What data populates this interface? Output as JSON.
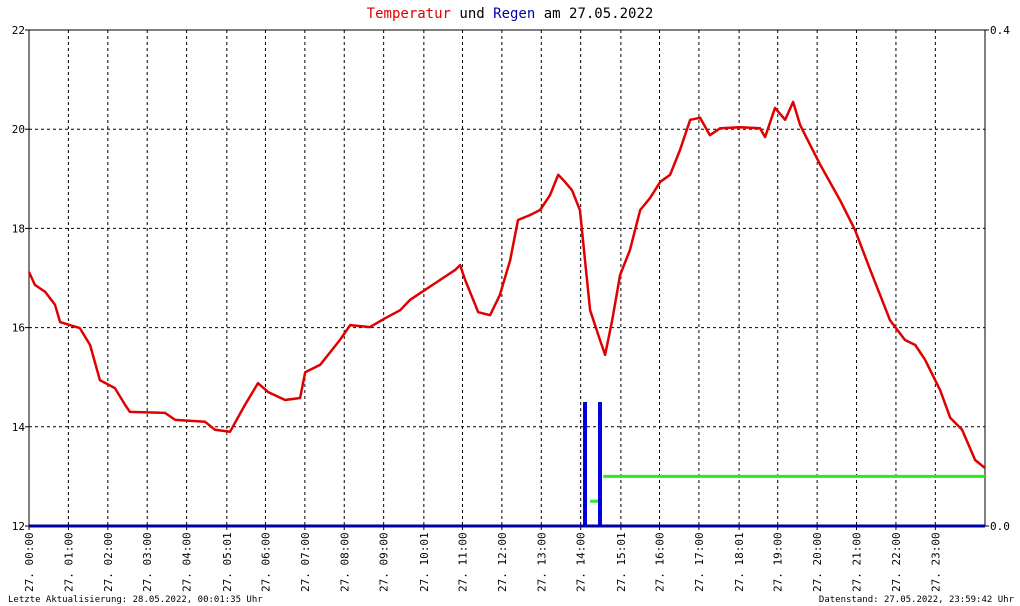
{
  "chart_data": {
    "type": "line",
    "title": {
      "connector": "und",
      "date": "am 27.05.2022"
    },
    "footer_left": "Letzte Aktualisierung: 28.05.2022, 00:01:35 Uhr",
    "footer_right": "Datenstand: 27.05.2022, 23:59:42 Uhr",
    "xlim": [
      0,
      24.26
    ],
    "xticks": [
      {
        "value": 0,
        "label": "27. 00:00"
      },
      {
        "value": 1,
        "label": "27. 01:00"
      },
      {
        "value": 2,
        "label": "27. 02:00"
      },
      {
        "value": 3,
        "label": "27. 03:00"
      },
      {
        "value": 4,
        "label": "27. 04:00"
      },
      {
        "value": 5.02,
        "label": "27. 05:01"
      },
      {
        "value": 6,
        "label": "27. 06:00"
      },
      {
        "value": 7,
        "label": "27. 07:00"
      },
      {
        "value": 8,
        "label": "27. 08:00"
      },
      {
        "value": 9,
        "label": "27. 09:00"
      },
      {
        "value": 10.02,
        "label": "27. 10:01"
      },
      {
        "value": 11,
        "label": "27. 11:00"
      },
      {
        "value": 12,
        "label": "27. 12:00"
      },
      {
        "value": 13,
        "label": "27. 13:00"
      },
      {
        "value": 14,
        "label": "27. 14:00"
      },
      {
        "value": 15.02,
        "label": "27. 15:01"
      },
      {
        "value": 16,
        "label": "27. 16:00"
      },
      {
        "value": 17,
        "label": "27. 17:00"
      },
      {
        "value": 18.02,
        "label": "27. 18:01"
      },
      {
        "value": 19,
        "label": "27. 19:00"
      },
      {
        "value": 20,
        "label": "27. 20:00"
      },
      {
        "value": 21,
        "label": "27. 21:00"
      },
      {
        "value": 22,
        "label": "27. 22:00"
      },
      {
        "value": 23,
        "label": "27. 23:00"
      }
    ],
    "ylim": [
      12,
      22
    ],
    "yticks": [
      12,
      14,
      16,
      18,
      20,
      22
    ],
    "y2lim": [
      0,
      0.4
    ],
    "y2ticks": [
      {
        "value": 0,
        "label": "0.0"
      },
      {
        "value": 0.4,
        "label": "0.4"
      }
    ],
    "grid": true,
    "series": [
      {
        "name": "Temperatur",
        "color": "#e00000",
        "kind": "line",
        "x": [
          0,
          0.15,
          0.41,
          0.66,
          0.79,
          1.29,
          1.55,
          1.8,
          2.18,
          2.44,
          2.56,
          3.45,
          3.71,
          4.47,
          4.72,
          5.1,
          5.48,
          5.81,
          6.07,
          6.5,
          6.88,
          7.01,
          7.39,
          7.89,
          8.15,
          8.65,
          9.04,
          9.42,
          9.67,
          10.05,
          10.43,
          10.81,
          10.94,
          11.07,
          11.4,
          11.7,
          11.95,
          12.21,
          12.41,
          12.72,
          12.97,
          13.22,
          13.43,
          13.6,
          13.78,
          13.98,
          14.24,
          14.49,
          14.62,
          14.8,
          15.0,
          15.25,
          15.51,
          15.76,
          16.02,
          16.27,
          16.52,
          16.78,
          17.03,
          17.28,
          17.54,
          18.05,
          18.55,
          18.68,
          18.93,
          19.19,
          19.39,
          19.57,
          20.08,
          20.58,
          20.96,
          21.35,
          21.85,
          22.23,
          22.49,
          22.74,
          23.12,
          23.38,
          23.68,
          24.01,
          24.26
        ],
        "values": [
          17.12,
          16.86,
          16.72,
          16.46,
          16.11,
          15.99,
          15.65,
          14.94,
          14.78,
          14.44,
          14.3,
          14.28,
          14.14,
          14.1,
          13.94,
          13.9,
          14.44,
          14.88,
          14.7,
          14.54,
          14.58,
          15.1,
          15.25,
          15.75,
          16.05,
          16.01,
          16.19,
          16.35,
          16.56,
          16.76,
          16.96,
          17.16,
          17.26,
          16.96,
          16.31,
          16.25,
          16.66,
          17.36,
          18.17,
          18.27,
          18.37,
          18.67,
          19.08,
          18.94,
          18.77,
          18.37,
          16.35,
          15.75,
          15.45,
          16.15,
          17.06,
          17.56,
          18.37,
          18.61,
          18.94,
          19.08,
          19.58,
          20.19,
          20.23,
          19.88,
          20.02,
          20.04,
          20.02,
          19.84,
          20.43,
          20.19,
          20.55,
          20.08,
          19.28,
          18.57,
          17.97,
          17.16,
          16.15,
          15.75,
          15.65,
          15.35,
          14.74,
          14.18,
          13.94,
          13.33,
          13.17
        ]
      },
      {
        "name": "Regen",
        "color": "#0000dd",
        "kind": "bar",
        "axis": "y2",
        "x": [
          14.11,
          14.49
        ],
        "values": [
          0.1,
          0.1
        ]
      },
      {
        "color": "#22ee22",
        "kind": "line",
        "axis": "y2",
        "x": [
          14.24,
          14.44,
          14.5,
          14.57,
          24.26
        ],
        "values": [
          0.02,
          0.02,
          null,
          0.04,
          0.04
        ]
      }
    ]
  }
}
